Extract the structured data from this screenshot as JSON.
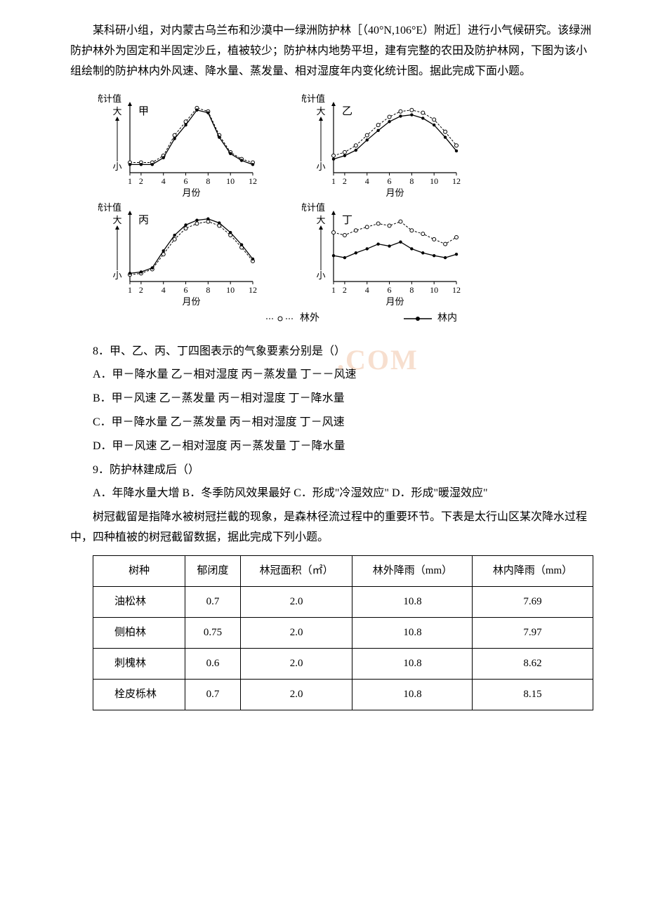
{
  "intro_para": "某科研小组，对内蒙古乌兰布和沙漠中一绿洲防护林［（40°N,106°E）附近］进行小气候研究。该绿洲防护林外为固定和半固定沙丘，植被较少；防护林内地势平坦，建有完整的农田及防护林网，下图为该小组绘制的防护林内外风速、降水量、蒸发量、相对湿度年内变化统计图。据此完成下面小题。",
  "charts": {
    "y_label_top": "统计值",
    "y_label_high": "大",
    "y_label_low": "小",
    "x_label": "月份",
    "x_ticks": [
      "1",
      "2",
      "4",
      "6",
      "8",
      "10",
      "12"
    ],
    "title_jia": "甲",
    "title_yi": "乙",
    "title_bing": "丙",
    "title_ding": "丁",
    "legend_outside": "林外",
    "legend_inside": "林内",
    "jia": {
      "outside": [
        15,
        15,
        15,
        25,
        55,
        75,
        95,
        90,
        55,
        30,
        20,
        15
      ],
      "inside": [
        12,
        12,
        12,
        22,
        50,
        70,
        92,
        88,
        52,
        28,
        18,
        12
      ]
    },
    "yi": {
      "outside": [
        25,
        30,
        40,
        55,
        70,
        82,
        90,
        92,
        88,
        78,
        60,
        40
      ],
      "inside": [
        20,
        25,
        33,
        48,
        62,
        75,
        83,
        85,
        80,
        70,
        52,
        32
      ]
    },
    "bing": {
      "outside": [
        10,
        12,
        18,
        40,
        62,
        78,
        85,
        88,
        82,
        68,
        50,
        30
      ],
      "inside": [
        12,
        14,
        20,
        45,
        68,
        83,
        90,
        92,
        86,
        72,
        54,
        33
      ]
    },
    "ding": {
      "outside": [
        72,
        68,
        75,
        80,
        85,
        82,
        88,
        75,
        70,
        62,
        55,
        65
      ],
      "inside": [
        38,
        35,
        42,
        48,
        55,
        52,
        58,
        48,
        42,
        38,
        35,
        40
      ]
    }
  },
  "q8": {
    "stem": "8．甲、乙、丙、丁四图表示的气象要素分别是（）",
    "a": "A．甲－降水量 乙－相对湿度 丙－蒸发量 丁－－风速",
    "b": "B．甲－风速 乙－蒸发量 丙－相对湿度 丁－降水量",
    "c": "C．甲－降水量 乙－蒸发量 丙－相对湿度 丁－风速",
    "d": "D．甲－风速 乙－相对湿度 丙－蒸发量 丁－降水量"
  },
  "q9": {
    "stem": "9．防护林建成后（）",
    "options": "A．年降水量大增 B．冬季防风效果最好 C．形成\"冷湿效应\" D．形成\"暖湿效应\""
  },
  "intro_para2": "树冠截留是指降水被树冠拦截的现象，是森林径流过程中的重要环节。下表是太行山区某次降水过程中，四种植被的树冠截留数据，据此完成下列小题。",
  "table": {
    "headers": [
      "树种",
      "郁闭度",
      "林冠面积（㎡）",
      "林外降雨（mm）",
      "林内降雨（mm）"
    ],
    "rows": [
      [
        "油松林",
        "0.7",
        "2.0",
        "10.8",
        "7.69"
      ],
      [
        "侧柏林",
        "0.75",
        "2.0",
        "10.8",
        "7.97"
      ],
      [
        "刺槐林",
        "0.6",
        "2.0",
        "10.8",
        "8.62"
      ],
      [
        "栓皮栎林",
        "0.7",
        "2.0",
        "10.8",
        "8.15"
      ]
    ]
  },
  "watermark_text": ".COM"
}
